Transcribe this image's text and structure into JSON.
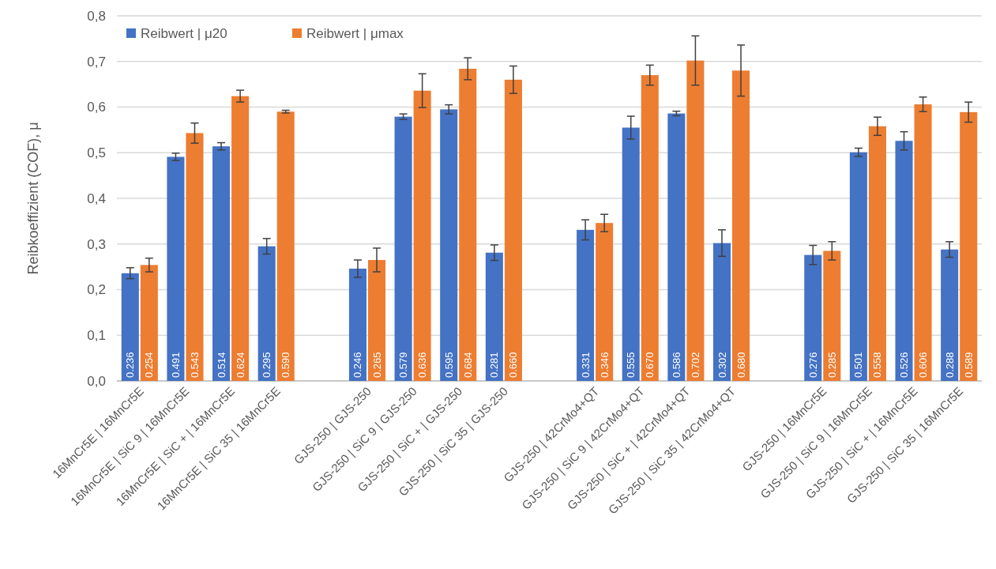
{
  "chart_data": {
    "type": "bar",
    "ylabel": "Reibkoeffizient (COF), μ",
    "categories": [
      "16MnCr5E | 16MnCr5E",
      "16MnCr5E | SiC 9 | 16MnCr5E",
      "16MnCr5E | SiC + | 16MnCr5E",
      "16MnCr5E | SiC 35 | 16MnCr5E",
      null,
      "GJS-250 | GJS-250",
      "GJS-250 | SiC 9 | GJS-250",
      "GJS-250 | SiC + | GJS-250",
      "GJS-250 | SiC 35 | GJS-250",
      null,
      "GJS-250 | 42CrMo4+QT",
      "GJS-250 | SiC 9 | 42CrMo4+QT",
      "GJS-250 | SiC + | 42CrMo4+QT",
      "GJS-250 | SiC 35 | 42CrMo4+QT",
      null,
      "GJS-250 | 16MnCr5E",
      "GJS-250 | SiC 9 | 16MnCr5E",
      "GJS-250 | SiC + | 16MnCr5E",
      "GJS-250 | SiC 35 | 16MnCr5E"
    ],
    "series": [
      {
        "name": "Reibwert | μ20",
        "color": "#4472c4",
        "values": [
          0.236,
          0.491,
          0.514,
          0.295,
          null,
          0.246,
          0.579,
          0.595,
          0.281,
          null,
          0.331,
          0.555,
          0.586,
          0.302,
          null,
          0.276,
          0.501,
          0.526,
          0.288
        ],
        "errors": [
          0.012,
          0.008,
          0.008,
          0.017,
          null,
          0.019,
          0.006,
          0.01,
          0.017,
          null,
          0.022,
          0.025,
          0.005,
          0.029,
          null,
          0.021,
          0.009,
          0.02,
          0.017
        ],
        "value_labels": [
          "0.236",
          "0.491",
          "0.514",
          "0.295",
          null,
          "0.246",
          "0.579",
          "0.595",
          "0.281",
          null,
          "0.331",
          "0.555",
          "0.586",
          "0.302",
          null,
          "0.276",
          "0.501",
          "0.526",
          "0.288"
        ]
      },
      {
        "name": "Reibwert | μmax",
        "color": "#ed7d31",
        "values": [
          0.254,
          0.543,
          0.624,
          0.59,
          null,
          0.265,
          0.636,
          0.684,
          0.66,
          null,
          0.346,
          0.67,
          0.702,
          0.68,
          null,
          0.285,
          0.558,
          0.606,
          0.589
        ],
        "errors": [
          0.015,
          0.022,
          0.013,
          0.003,
          null,
          0.026,
          0.037,
          0.024,
          0.03,
          null,
          0.019,
          0.022,
          0.054,
          0.056,
          null,
          0.02,
          0.02,
          0.016,
          0.022
        ],
        "value_labels": [
          "0.254",
          "0.543",
          "0.624",
          "0.590",
          null,
          "0.265",
          "0.636",
          "0.684",
          "0.660",
          null,
          "0.346",
          "0.670",
          "0.702",
          "0.680",
          null,
          "0.285",
          "0.558",
          "0.606",
          "0.589"
        ]
      }
    ],
    "ylim": [
      0,
      0.8
    ],
    "yticks": [
      {
        "value": 0,
        "label": "0,0"
      },
      {
        "value": 0.1,
        "label": "0,1"
      },
      {
        "value": 0.2,
        "label": "0,2"
      },
      {
        "value": 0.3,
        "label": "0,3"
      },
      {
        "value": 0.4,
        "label": "0,4"
      },
      {
        "value": 0.5,
        "label": "0,5"
      },
      {
        "value": 0.6,
        "label": "0,6"
      },
      {
        "value": 0.7,
        "label": "0,7"
      },
      {
        "value": 0.8,
        "label": "0,8"
      }
    ],
    "grid": "y",
    "legend": "top left"
  }
}
